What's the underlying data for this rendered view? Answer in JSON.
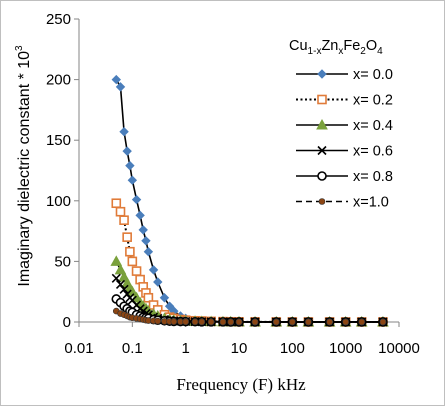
{
  "chart_data": {
    "type": "scatter",
    "xlabel": "Frequency (F) kHz",
    "ylabel": "Imaginary dielectric constant  * 10",
    "ylabel_exp": "3",
    "legend_title": {
      "pre": "Cu",
      "sub1": "1-x",
      "mid1": "Zn",
      "sub2": "x",
      "mid2": "Fe",
      "sub3": "2",
      "mid3": "O",
      "sub4": "4"
    },
    "x_scale": "log",
    "xlim": [
      0.01,
      10000
    ],
    "ylim": [
      0,
      250
    ],
    "x_ticks": [
      "0.01",
      "0.1",
      "1",
      "10",
      "100",
      "1000",
      "10000"
    ],
    "y_ticks": [
      "0",
      "50",
      "100",
      "150",
      "200",
      "250"
    ],
    "grid": false,
    "legend_position": "right",
    "x": [
      0.05,
      0.06,
      0.07,
      0.08,
      0.09,
      0.1,
      0.12,
      0.14,
      0.16,
      0.18,
      0.2,
      0.25,
      0.3,
      0.4,
      0.5,
      0.6,
      0.8,
      1,
      1.5,
      2,
      3,
      5,
      7,
      10,
      20,
      50,
      100,
      200,
      500,
      1000,
      2000,
      5000
    ],
    "series": [
      {
        "name": "x= 0.0",
        "color": "#4a7ebb",
        "marker": "diamond",
        "line": "solid",
        "values": [
          200,
          194,
          157,
          141,
          129,
          117,
          101,
          88,
          76,
          67,
          58,
          43,
          33,
          20,
          13,
          9,
          5,
          3,
          1.5,
          1,
          0.6,
          0.3,
          0.2,
          0.15,
          0.1,
          0.05,
          0.05,
          0.05,
          0.05,
          0.05,
          0.05,
          0.05
        ]
      },
      {
        "name": "x= 0.2",
        "color": "#e07b39",
        "marker": "square",
        "line": "dotted",
        "values": [
          98,
          91,
          84,
          70,
          58,
          50,
          42,
          35,
          29,
          24,
          20,
          14,
          10,
          6,
          4,
          3,
          2,
          1.5,
          1,
          0.8,
          0.5,
          0.3,
          0.2,
          0.15,
          0.1,
          0.05,
          0.05,
          0.05,
          0.05,
          0.05,
          0.05,
          0.05
        ]
      },
      {
        "name": "x= 0.4",
        "color": "#7aa13c",
        "marker": "triangle",
        "line": "solid",
        "values": [
          50,
          43,
          37,
          32,
          28,
          25,
          20,
          16,
          13,
          11,
          9,
          6.5,
          5,
          3,
          2,
          1.5,
          1,
          0.7,
          0.5,
          0.4,
          0.3,
          0.2,
          0.15,
          0.1,
          0.05,
          0.05,
          0.05,
          0.05,
          0.05,
          0.05,
          0.05,
          0.05
        ]
      },
      {
        "name": "x= 0.6",
        "color": "#000000",
        "marker": "x",
        "line": "solid",
        "values": [
          36,
          31,
          27,
          23,
          20,
          18,
          14,
          11,
          9,
          7,
          6,
          4,
          3,
          2,
          1.4,
          1,
          0.7,
          0.5,
          0.3,
          0.25,
          0.2,
          0.15,
          0.1,
          0.1,
          0.05,
          0.05,
          0.05,
          0.05,
          0.05,
          0.05,
          0.05,
          0.05
        ]
      },
      {
        "name": "x= 0.8",
        "color": "#000000",
        "marker": "circle",
        "line": "solid",
        "values": [
          19,
          16,
          13,
          11,
          9,
          8,
          6,
          5,
          4,
          3.5,
          3,
          2,
          1.5,
          1,
          0.7,
          0.5,
          0.4,
          0.3,
          0.2,
          0.15,
          0.1,
          0.1,
          0.05,
          0.05,
          0.05,
          0.05,
          0.05,
          0.05,
          0.05,
          0.05,
          0.05,
          0.05
        ]
      },
      {
        "name": "x=1.0",
        "color": "#8b4513",
        "marker": "dot",
        "line": "dashed",
        "values": [
          9,
          7,
          6,
          5,
          4,
          3.5,
          3,
          2.5,
          2,
          1.5,
          1.2,
          1,
          0.8,
          0.5,
          0.4,
          0.3,
          0.25,
          0.2,
          0.15,
          0.1,
          0.1,
          0.05,
          0.05,
          0.05,
          0.05,
          0.05,
          0.05,
          0.05,
          0.05,
          0.05,
          0.05,
          0.05
        ]
      }
    ]
  }
}
